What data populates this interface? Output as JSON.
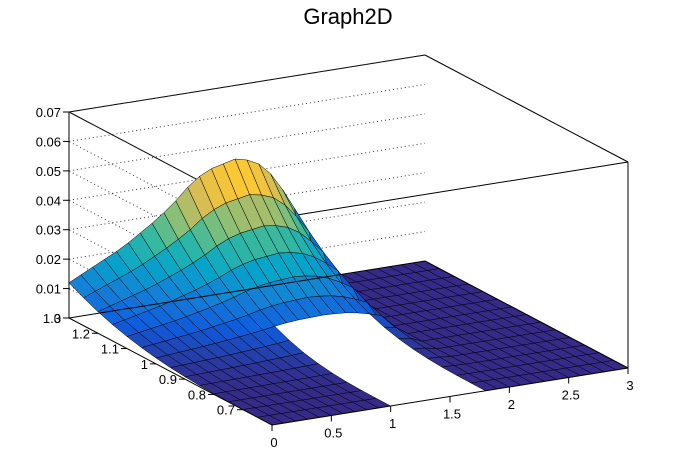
{
  "chart_data": {
    "type": "surface",
    "title": "Graph2D",
    "xlabel": "",
    "ylabel": "",
    "zlabel": "",
    "xlim": [
      0,
      3
    ],
    "ylim": [
      0.6,
      1.3
    ],
    "zlim": [
      0,
      0.07
    ],
    "x_ticks": [
      "0",
      "0.5",
      "1",
      "1.5",
      "2",
      "2.5",
      "3"
    ],
    "y_ticks": [
      "0.7",
      "0.8",
      "0.9",
      "1",
      "1.1",
      "1.2",
      "1.3"
    ],
    "z_ticks": [
      "0",
      "0.01",
      "0.02",
      "0.03",
      "0.04",
      "0.05",
      "0.06",
      "0.07"
    ],
    "grid": true,
    "palette": [
      "#352a87",
      "#0f5cdd",
      "#1481d6",
      "#06a4ca",
      "#2eb7a4",
      "#87bf77",
      "#d1bb59",
      "#fec832",
      "#f9fb0e"
    ],
    "surface_description_values": {
      "x": [
        0,
        0.15,
        0.3,
        0.45,
        0.6,
        0.75,
        0.9,
        1.0,
        1.1,
        1.2,
        1.3,
        1.4,
        1.5,
        1.6,
        1.7,
        1.8,
        1.9,
        2.0,
        2.2,
        2.4,
        2.6,
        2.8,
        3.0
      ],
      "ridge_max": [
        0.012,
        0.015,
        0.018,
        0.021,
        0.025,
        0.029,
        0.034,
        0.038,
        0.041,
        0.043,
        0.044,
        0.045,
        0.044,
        0.042,
        0.038,
        0.032,
        0.025,
        0.0,
        0.0,
        0.0,
        0.0,
        0.0,
        0.0
      ]
    }
  }
}
